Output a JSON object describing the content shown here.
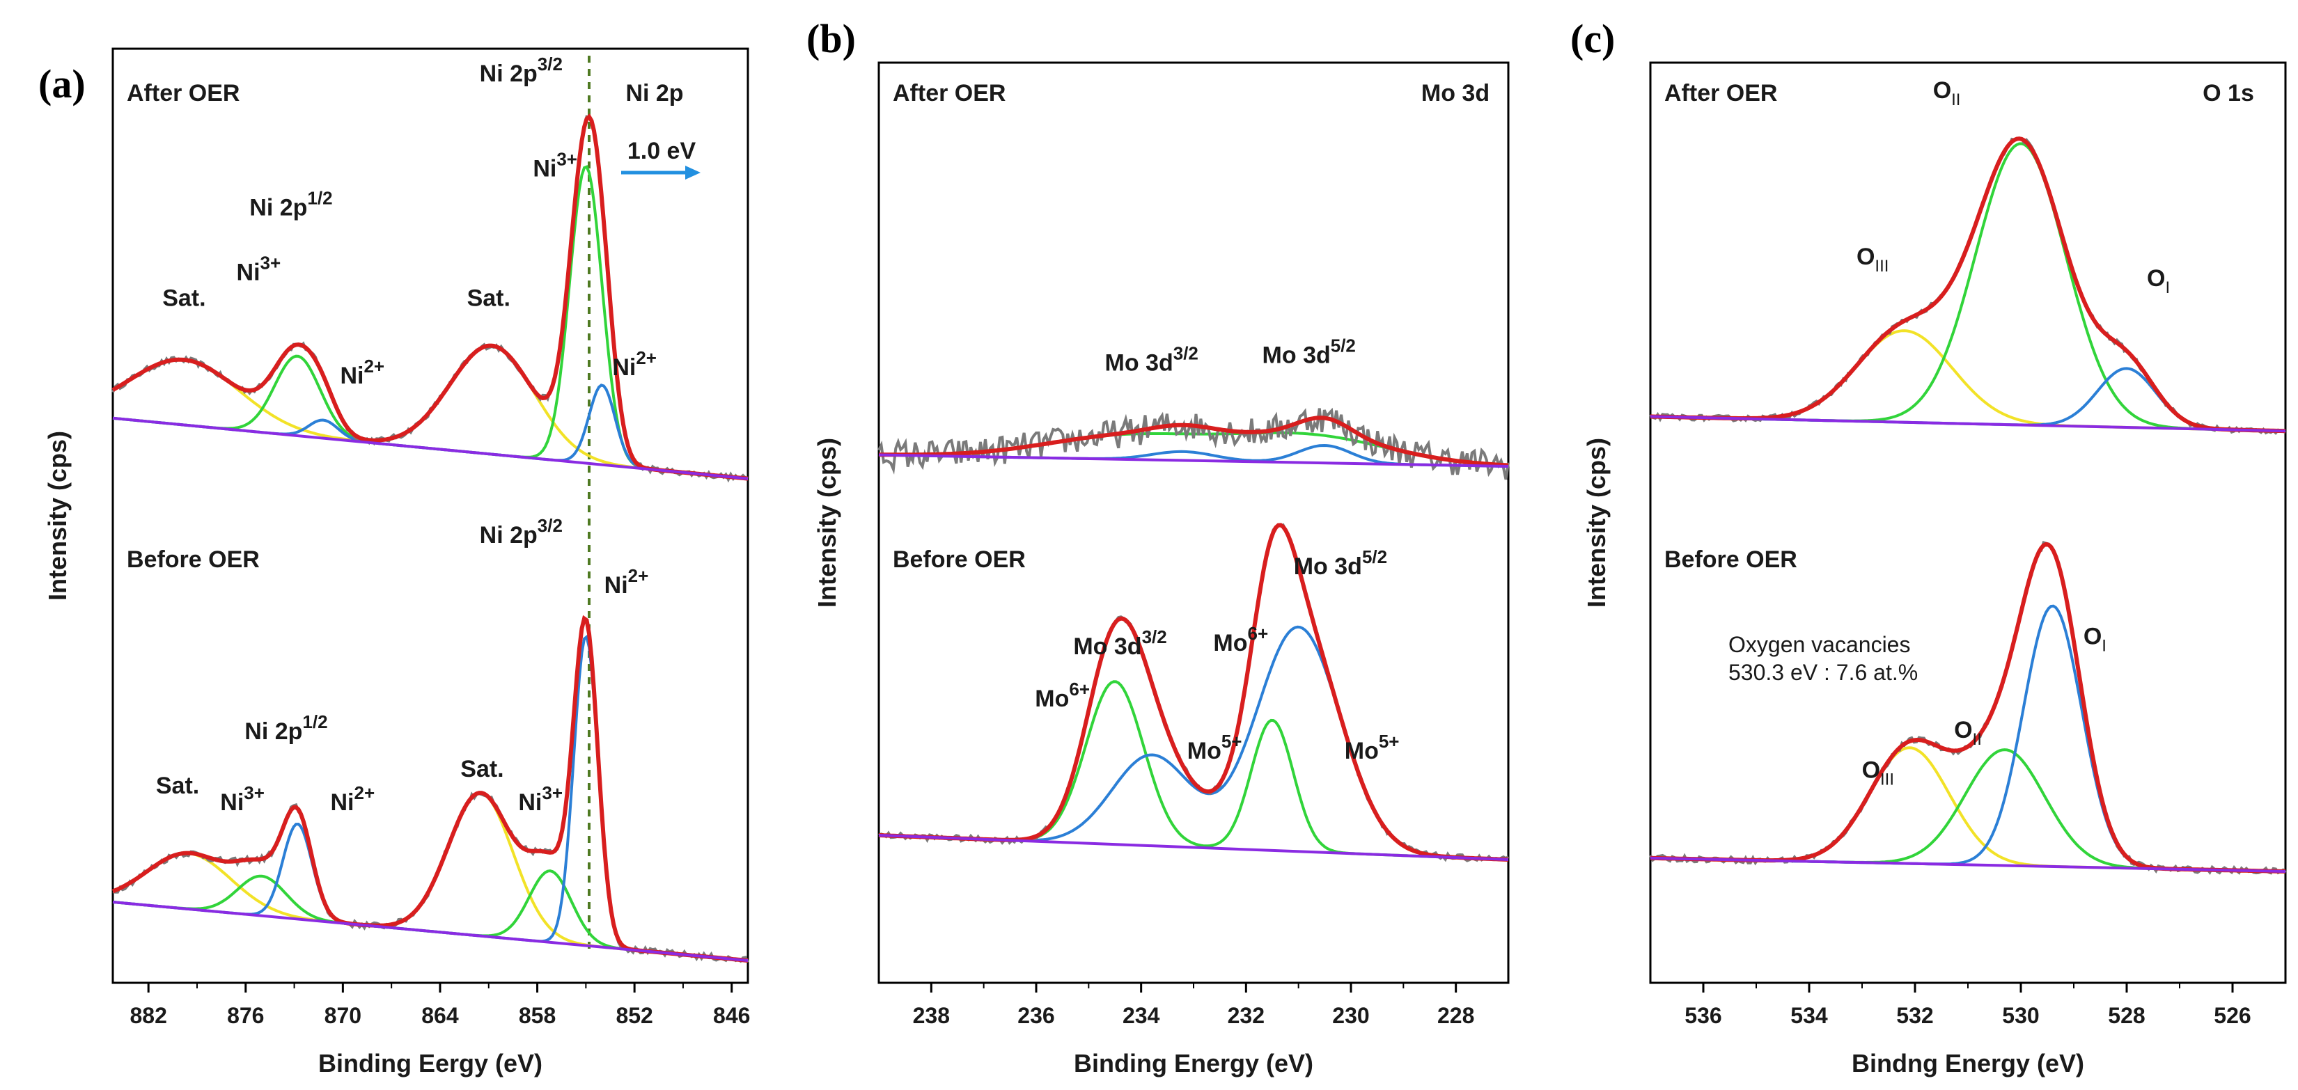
{
  "figure_letters": [
    "(a)",
    "(b)",
    "(c)"
  ],
  "chart_data": [
    {
      "type": "line",
      "panel": "(a)",
      "title": "Ni 2p",
      "xlabel": "Binding Eergy (eV)",
      "ylabel": "Intensity (cps)",
      "xlim": [
        884.2,
        845.0
      ],
      "xticks": [
        882,
        876,
        870,
        864,
        858,
        852,
        846
      ],
      "dashed_line_x": 854.8,
      "shift_label": "1.0 eV",
      "sections": [
        {
          "label": "After OER",
          "baseline_y": [
            0.84,
            0.98
          ],
          "annotations": [
            {
              "text": "Sat.",
              "x": 879.8,
              "y": 0.58
            },
            {
              "text": "Ni",
              "sup": "3+",
              "x": 875.2,
              "y": 0.52
            },
            {
              "text": "Ni 2p",
              "sup": "1/2",
              "x": 873.2,
              "y": 0.37
            },
            {
              "text": "Ni",
              "sup": "2+",
              "x": 868.8,
              "y": 0.76
            },
            {
              "text": "Sat.",
              "x": 861.0,
              "y": 0.58
            },
            {
              "text": "Ni",
              "sup": "3+",
              "x": 856.9,
              "y": 0.28
            },
            {
              "text": "Ni 2p",
              "sup": "3/2",
              "x": 859.0,
              "y": 0.06
            },
            {
              "text": "Ni",
              "sup": "2+",
              "x": 852.0,
              "y": 0.74
            }
          ],
          "components": [
            {
              "name": "Sat.",
              "color": "#f2e227",
              "peaks": [
                [
                  879.8,
                  0.18,
                  3.4
                ],
                [
                  860.8,
                  0.3,
                  2.6
                ]
              ]
            },
            {
              "name": "Ni3+",
              "color": "#31d43a",
              "peaks": [
                [
                  872.8,
                  0.22,
                  1.4
                ],
                [
                  855.0,
                  0.82,
                  1.0
                ]
              ]
            },
            {
              "name": "Ni2+",
              "color": "#2b7fd6",
              "peaks": [
                [
                  871.2,
                  0.05,
                  0.9
                ],
                [
                  854.0,
                  0.22,
                  0.8
                ]
              ]
            }
          ]
        },
        {
          "label": "Before OER",
          "baseline_y": [
            0.86,
            1.0
          ],
          "annotations": [
            {
              "text": "Sat.",
              "x": 880.2,
              "y": 0.6
            },
            {
              "text": "Ni",
              "sup": "3+",
              "x": 876.2,
              "y": 0.64
            },
            {
              "text": "Ni 2p",
              "sup": "1/2",
              "x": 873.5,
              "y": 0.47
            },
            {
              "text": "Ni",
              "sup": "2+",
              "x": 869.4,
              "y": 0.64
            },
            {
              "text": "Sat.",
              "x": 861.4,
              "y": 0.56
            },
            {
              "text": "Ni",
              "sup": "3+",
              "x": 857.8,
              "y": 0.64
            },
            {
              "text": "Ni 2p",
              "sup": "3/2",
              "x": 859.0,
              "y": 0.0
            },
            {
              "text": "Ni",
              "sup": "2+",
              "x": 852.5,
              "y": 0.12
            }
          ],
          "components": [
            {
              "name": "Sat.",
              "color": "#f2e227",
              "peaks": [
                [
                  879.5,
                  0.14,
                  2.6
                ],
                [
                  861.5,
                  0.36,
                  2.0
                ]
              ]
            },
            {
              "name": "Ni3+",
              "color": "#31d43a",
              "peaks": [
                [
                  875.0,
                  0.1,
                  1.5
                ],
                [
                  857.2,
                  0.18,
                  1.3
                ]
              ]
            },
            {
              "name": "Ni2+",
              "color": "#2b7fd6",
              "peaks": [
                [
                  872.8,
                  0.24,
                  0.9
                ],
                [
                  855.0,
                  0.78,
                  0.75
                ]
              ]
            }
          ]
        }
      ]
    },
    {
      "type": "line",
      "panel": "(b)",
      "title": "Mo 3d",
      "xlabel": "Binding Energy (eV)",
      "ylabel": "Intensity (cps)",
      "xlim": [
        239.0,
        227.0
      ],
      "xticks": [
        238,
        236,
        234,
        232,
        230,
        228
      ],
      "sections": [
        {
          "label": "After OER",
          "baseline_y": [
            0.97,
            1.0
          ],
          "annotations": [
            {
              "text": "Mo 3d",
              "sup": "3/2",
              "x": 233.8,
              "y": 0.75
            },
            {
              "text": "Mo 3d",
              "sup": "5/2",
              "x": 230.8,
              "y": 0.73
            }
          ],
          "components": [
            {
              "name": "Mo6+",
              "color": "#31d43a",
              "peaks": [
                [
                  234.2,
                  0.08,
                  1.6
                ],
                [
                  230.8,
                  0.09,
                  1.5
                ]
              ]
            },
            {
              "name": "Mo5+",
              "color": "#2b7fd6",
              "peaks": [
                [
                  233.2,
                  0.03,
                  0.6
                ],
                [
                  230.5,
                  0.06,
                  0.5
                ]
              ]
            }
          ]
        },
        {
          "label": "Before OER",
          "baseline_y": [
            0.8,
            0.87
          ],
          "annotations": [
            {
              "text": "Mo 3d",
              "sup": "3/2",
              "x": 234.4,
              "y": 0.28
            },
            {
              "text": "Mo",
              "sup": "6+",
              "x": 235.5,
              "y": 0.43
            },
            {
              "text": "Mo",
              "sup": "6+",
              "x": 232.1,
              "y": 0.27
            },
            {
              "text": "Mo 3d",
              "sup": "5/2",
              "x": 230.2,
              "y": 0.05
            },
            {
              "text": "Mo",
              "sup": "5+",
              "x": 232.6,
              "y": 0.58
            },
            {
              "text": "Mo",
              "sup": "5+",
              "x": 229.6,
              "y": 0.58
            }
          ],
          "components": [
            {
              "name": "Mo6+",
              "color": "#31d43a",
              "peaks": [
                [
                  234.5,
                  0.45,
                  0.55
                ],
                [
                  231.5,
                  0.36,
                  0.4
                ]
              ]
            },
            {
              "name": "Mo5+",
              "color": "#2b7fd6",
              "peaks": [
                [
                  233.8,
                  0.25,
                  0.75
                ],
                [
                  231.0,
                  0.62,
                  0.8
                ]
              ]
            }
          ]
        }
      ]
    },
    {
      "type": "line",
      "panel": "(c)",
      "title": "O 1s",
      "xlabel": "Bindng Energy (eV)",
      "ylabel": "Intensity (cps)",
      "xlim": [
        537.0,
        525.0
      ],
      "xticks": [
        536,
        534,
        532,
        530,
        528,
        526
      ],
      "sections": [
        {
          "label": "After OER",
          "baseline_y": [
            0.92,
            0.96
          ],
          "annotations": [
            {
              "text": "O",
              "sub": "III",
              "x": 532.8,
              "y": 0.5
            },
            {
              "text": "O",
              "sub": "II",
              "x": 531.4,
              "y": 0.04
            },
            {
              "text": "O",
              "sub": "I",
              "x": 527.4,
              "y": 0.56
            }
          ],
          "components": [
            {
              "name": "OIII",
              "color": "#f2e227",
              "peaks": [
                [
                  532.2,
                  0.28,
                  0.9
                ]
              ]
            },
            {
              "name": "OII",
              "color": "#31d43a",
              "peaks": [
                [
                  530.0,
                  0.86,
                  0.85
                ]
              ]
            },
            {
              "name": "OI",
              "color": "#2b7fd6",
              "peaks": [
                [
                  528.0,
                  0.18,
                  0.55
                ]
              ]
            }
          ]
        },
        {
          "label": "Before OER",
          "baseline_y": [
            0.86,
            0.9
          ],
          "annotations": [
            {
              "text": "O",
              "sub": "II",
              "x": 531.0,
              "y": 0.5
            },
            {
              "text": "O",
              "sub": "III",
              "x": 532.7,
              "y": 0.62
            },
            {
              "text": "O",
              "sub": "I",
              "x": 528.6,
              "y": 0.22
            }
          ],
          "note_lines": [
            "Oxygen vacancies",
            "530.3 eV : 7.6 at.%"
          ],
          "components": [
            {
              "name": "OIII",
              "color": "#f2e227",
              "peaks": [
                [
                  532.1,
                  0.32,
                  0.75
                ]
              ]
            },
            {
              "name": "OII",
              "color": "#31d43a",
              "peaks": [
                [
                  530.3,
                  0.32,
                  0.75
                ]
              ]
            },
            {
              "name": "OI",
              "color": "#2b7fd6",
              "peaks": [
                [
                  529.4,
                  0.72,
                  0.55
                ]
              ]
            }
          ]
        }
      ]
    }
  ],
  "colors": {
    "raw": "#7a7a7a",
    "envelope": "#d81e1e",
    "baseline": "#8a2be2",
    "dashed": "#4f7a22",
    "arrow": "#2290e0"
  }
}
